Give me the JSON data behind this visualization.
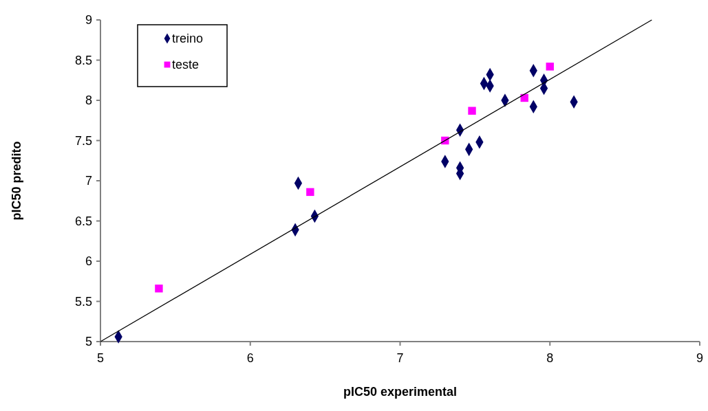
{
  "chart_data": {
    "type": "scatter",
    "xlabel": "pIC50 experimental",
    "ylabel": "pIC50 predito",
    "xlim": [
      5,
      9
    ],
    "ylim": [
      5,
      9
    ],
    "xticks": [
      5,
      6,
      7,
      8,
      9
    ],
    "yticks": [
      5,
      5.5,
      6,
      6.5,
      7,
      7.5,
      8,
      8.5,
      9
    ],
    "grid": false,
    "legend": "top left",
    "series": [
      {
        "name": "treino",
        "color": "#000066",
        "marker": "diamond",
        "x": [
          5.12,
          6.3,
          6.32,
          6.43,
          7.6,
          7.56,
          7.6,
          7.7,
          7.89,
          7.96,
          7.96,
          7.89,
          8.16,
          7.4,
          7.53,
          7.46,
          7.3,
          7.4,
          7.4
        ],
        "values": [
          5.06,
          6.39,
          6.97,
          6.56,
          8.32,
          8.21,
          8.18,
          8.0,
          8.37,
          8.25,
          8.15,
          7.92,
          7.98,
          7.63,
          7.48,
          7.39,
          7.24,
          7.16,
          7.09
        ]
      },
      {
        "name": "teste",
        "color": "#ff00ff",
        "marker": "square",
        "x": [
          5.39,
          6.4,
          7.3,
          7.48,
          7.83,
          8.0
        ],
        "values": [
          5.66,
          6.86,
          7.5,
          7.87,
          8.03,
          8.42
        ]
      },
      {
        "type": "line",
        "color": "#000000",
        "marker": "none",
        "line_style": "solid",
        "x": [
          5,
          8.68
        ],
        "values": [
          5,
          9
        ]
      }
    ]
  }
}
